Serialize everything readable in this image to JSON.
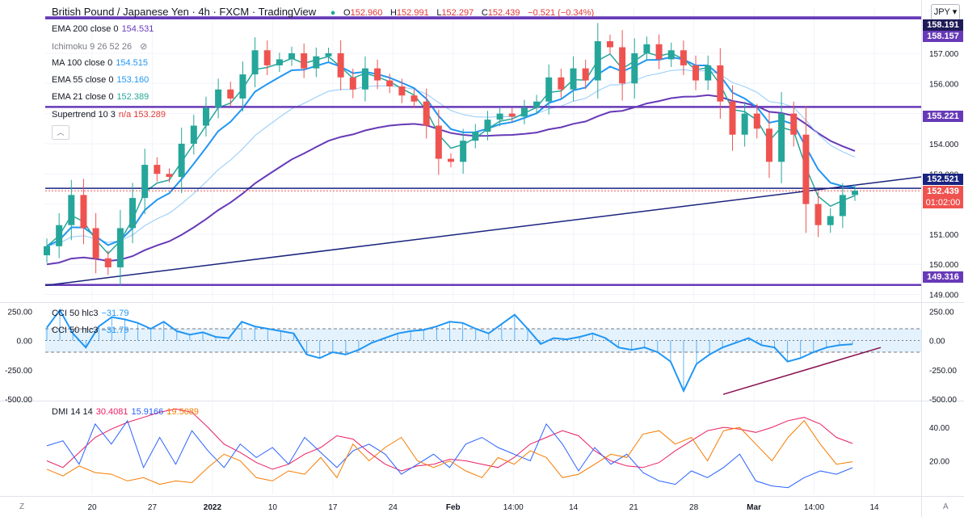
{
  "header": {
    "title": "British Pound / Japanese Yen · 4h · FXCM · TradingView",
    "o_label": "O",
    "o": "152.960",
    "h_label": "H",
    "h": "152.991",
    "l_label": "L",
    "l": "152.297",
    "c_label": "C",
    "c": "152.439",
    "change": "−0.521 (−0.34%)",
    "currency": "JPY"
  },
  "legend": [
    {
      "name": "EMA 200 close 0",
      "value": "154.531",
      "color": "#673ab7"
    },
    {
      "name": "Ichimoku 9 26 52 26",
      "value": "",
      "color": "#787b86"
    },
    {
      "name": "MA 100 close 0",
      "value": "154.515",
      "color": "#2196f3"
    },
    {
      "name": "EMA 55 close 0",
      "value": "153.160",
      "color": "#2196f3"
    },
    {
      "name": "EMA 21 close 0",
      "value": "152.389",
      "color": "#26a69a"
    },
    {
      "name": "Supertrend 10 3",
      "value": "n/a  153.289",
      "color": "#e53935"
    }
  ],
  "price_tags": {
    "t1": "158.191",
    "t2": "158.157",
    "t3": "155.221",
    "t4": "152.521",
    "t5": "152.439",
    "t6": "01:02:00",
    "t7": "149.316"
  },
  "cci_legend": {
    "name": "CCI 50 hlc3",
    "value": "−31.79"
  },
  "dmi_legend": {
    "name": "DMI 14 14",
    "adx": "30.4081",
    "plus": "15.9166",
    "minus": "19.5089"
  },
  "colors": {
    "up": "#26a69a",
    "down": "#ef5350",
    "level": "#673ab7",
    "trend": "#1a237e",
    "cci": "#2196f3",
    "adx": "#e91e63",
    "plus": "#2962ff",
    "minus": "#f57c00",
    "bear_line": "#880e4f"
  },
  "chart_data": [
    {
      "type": "candlestick",
      "title": "British Pound / Japanese Yen · 4h · FXCM · TradingView",
      "x_ticks": [
        "20",
        "27",
        "2022",
        "10",
        "17",
        "24",
        "Feb",
        "14:00",
        "14",
        "21",
        "28",
        "Mar",
        "14:00",
        "14"
      ],
      "y_ticks": [
        149.0,
        150.0,
        151.0,
        152.0,
        153.0,
        154.0,
        155.0,
        156.0,
        157.0
      ],
      "ylim": [
        148.8,
        158.5
      ],
      "horizontal_levels": [
        158.191,
        158.157,
        155.221,
        152.521,
        149.316
      ],
      "last_price": 152.439,
      "close_path": [
        150.6,
        151.3,
        152.3,
        151.2,
        150.2,
        149.9,
        151.2,
        152.2,
        153.3,
        153.0,
        152.9,
        154.0,
        154.6,
        155.2,
        155.8,
        155.5,
        156.3,
        157.1,
        156.6,
        156.8,
        157.0,
        156.5,
        156.9,
        157.0,
        156.2,
        155.8,
        156.5,
        156.1,
        155.9,
        155.6,
        155.4,
        154.6,
        153.5,
        153.4,
        154.1,
        154.4,
        154.8,
        155.0,
        154.9,
        155.2,
        155.4,
        156.2,
        155.8,
        156.5,
        156.1,
        157.4,
        157.2,
        156.0,
        157.0,
        157.3,
        156.8,
        157.1,
        156.6,
        156.1,
        156.6,
        155.4,
        154.3,
        155.0,
        154.5,
        153.4,
        155.0,
        154.3,
        152.0,
        151.3,
        151.6,
        152.3,
        152.44
      ],
      "annotations": [
        {
          "kind": "trendline",
          "from": [
            "20",
            149.3
          ],
          "to": [
            "14",
            152.9
          ]
        }
      ]
    },
    {
      "type": "line",
      "title": "CCI 50 hlc3",
      "y_ticks": [
        250.0,
        0.0,
        -250.0,
        -500.0
      ],
      "ylim": [
        -500,
        300
      ],
      "band": [
        100,
        -100
      ],
      "series": [
        {
          "name": "CCI 50 hlc3",
          "values": [
            110,
            260,
            60,
            -60,
            120,
            200,
            180,
            150,
            100,
            160,
            80,
            50,
            70,
            30,
            20,
            160,
            120,
            100,
            80,
            60,
            -120,
            -150,
            -100,
            -120,
            -80,
            -20,
            20,
            60,
            80,
            90,
            120,
            160,
            150,
            100,
            60,
            140,
            220,
            100,
            -30,
            20,
            10,
            30,
            60,
            20,
            -60,
            -80,
            -60,
            -100,
            -180,
            -430,
            -200,
            -120,
            -60,
            -20,
            20,
            -40,
            -60,
            -180,
            -150,
            -100,
            -60,
            -40,
            -31.79
          ]
        }
      ],
      "annotations": [
        {
          "kind": "trendline",
          "from": [
            "28",
            -460
          ],
          "to": [
            "14",
            -60
          ]
        }
      ]
    },
    {
      "type": "line",
      "title": "DMI 14 14",
      "y_ticks": [
        20.0,
        40.0
      ],
      "ylim": [
        0,
        55
      ],
      "series": [
        {
          "name": "ADX",
          "values": [
            20,
            16,
            25,
            34,
            39,
            43,
            46,
            49,
            51,
            49,
            40,
            30,
            25,
            19,
            15,
            18,
            24,
            28,
            35,
            33,
            25,
            18,
            14,
            17,
            18,
            21,
            20,
            18,
            16,
            22,
            30,
            34,
            38,
            35,
            26,
            20,
            17,
            16,
            19,
            26,
            32,
            38,
            40,
            39,
            37,
            40,
            44,
            46,
            42,
            34,
            30.41
          ]
        },
        {
          "name": "+DI",
          "values": [
            29,
            32,
            18,
            42,
            30,
            44,
            16,
            34,
            18,
            38,
            26,
            16,
            30,
            22,
            28,
            18,
            34,
            25,
            16,
            26,
            30,
            24,
            12,
            18,
            24,
            16,
            30,
            34,
            28,
            24,
            20,
            42,
            30,
            14,
            28,
            18,
            24,
            13,
            8,
            6,
            14,
            10,
            16,
            24,
            8,
            5,
            4,
            10,
            14,
            12,
            15.92
          ]
        },
        {
          "name": "−DI",
          "values": [
            15,
            11,
            17,
            13,
            12,
            8,
            10,
            6,
            8,
            7,
            16,
            24,
            20,
            10,
            8,
            14,
            12,
            22,
            10,
            30,
            20,
            28,
            34,
            20,
            16,
            20,
            14,
            10,
            22,
            18,
            26,
            22,
            10,
            12,
            18,
            24,
            22,
            36,
            38,
            30,
            34,
            20,
            38,
            40,
            30,
            20,
            34,
            44,
            30,
            18,
            19.51
          ]
        }
      ]
    }
  ]
}
